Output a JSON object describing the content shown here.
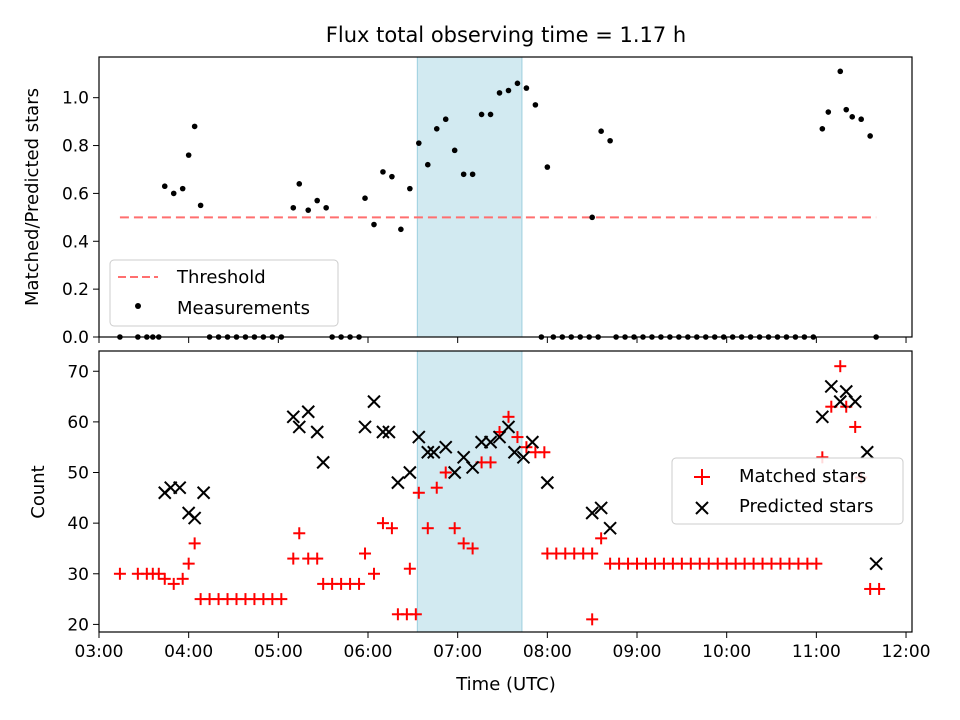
{
  "title": "Flux total observing time = 1.17 h",
  "shaded_span": {
    "start": "06:33",
    "end": "07:43",
    "color": "#add8e6"
  },
  "chart_data": [
    {
      "type": "scatter",
      "ylabel": "Matched/Predicted stars",
      "ylim": [
        0,
        1.17
      ],
      "yticks": [
        "0.0",
        "0.2",
        "0.4",
        "0.6",
        "0.8",
        "1.0"
      ],
      "threshold": {
        "value": 0.5,
        "x_start": "03:14",
        "x_end": "11:40",
        "color": "#ff6f6f",
        "style": "dashed"
      },
      "legend": {
        "position": "lower left",
        "items": [
          "Threshold",
          "Measurements"
        ]
      },
      "series": [
        {
          "name": "Measurements",
          "color": "#000000",
          "points": [
            [
              "03:14",
              0
            ],
            [
              "03:26",
              0
            ],
            [
              "03:32",
              0
            ],
            [
              "03:36",
              0
            ],
            [
              "03:40",
              0
            ],
            [
              "03:44",
              0.63
            ],
            [
              "03:50",
              0.6
            ],
            [
              "03:56",
              0.62
            ],
            [
              "04:00",
              0.76
            ],
            [
              "04:04",
              0.88
            ],
            [
              "04:08",
              0.55
            ],
            [
              "04:14",
              0
            ],
            [
              "04:20",
              0
            ],
            [
              "04:26",
              0
            ],
            [
              "04:32",
              0
            ],
            [
              "04:38",
              0
            ],
            [
              "04:44",
              0
            ],
            [
              "04:50",
              0
            ],
            [
              "04:56",
              0
            ],
            [
              "05:02",
              0
            ],
            [
              "05:10",
              0.54
            ],
            [
              "05:14",
              0.64
            ],
            [
              "05:20",
              0.53
            ],
            [
              "05:26",
              0.57
            ],
            [
              "05:32",
              0.54
            ],
            [
              "05:36",
              0
            ],
            [
              "05:42",
              0
            ],
            [
              "05:48",
              0
            ],
            [
              "05:54",
              0
            ],
            [
              "05:58",
              0.58
            ],
            [
              "06:04",
              0.47
            ],
            [
              "06:10",
              0.69
            ],
            [
              "06:16",
              0.67
            ],
            [
              "06:22",
              0.45
            ],
            [
              "06:28",
              0.62
            ],
            [
              "06:34",
              0.81
            ],
            [
              "06:40",
              0.72
            ],
            [
              "06:46",
              0.87
            ],
            [
              "06:52",
              0.91
            ],
            [
              "06:58",
              0.78
            ],
            [
              "07:04",
              0.68
            ],
            [
              "07:10",
              0.68
            ],
            [
              "07:16",
              0.93
            ],
            [
              "07:22",
              0.93
            ],
            [
              "07:28",
              1.02
            ],
            [
              "07:34",
              1.03
            ],
            [
              "07:40",
              1.06
            ],
            [
              "07:46",
              1.04
            ],
            [
              "07:52",
              0.97
            ],
            [
              "07:56",
              0
            ],
            [
              "08:00",
              0.71
            ],
            [
              "08:04",
              0
            ],
            [
              "08:10",
              0
            ],
            [
              "08:16",
              0
            ],
            [
              "08:22",
              0
            ],
            [
              "08:28",
              0
            ],
            [
              "08:34",
              0
            ],
            [
              "08:30",
              0.5
            ],
            [
              "08:36",
              0.86
            ],
            [
              "08:42",
              0.82
            ],
            [
              "08:46",
              0
            ],
            [
              "08:52",
              0
            ],
            [
              "08:58",
              0
            ],
            [
              "09:04",
              0
            ],
            [
              "09:10",
              0
            ],
            [
              "09:16",
              0
            ],
            [
              "09:22",
              0
            ],
            [
              "09:28",
              0
            ],
            [
              "09:34",
              0
            ],
            [
              "09:40",
              0
            ],
            [
              "09:46",
              0
            ],
            [
              "09:52",
              0
            ],
            [
              "09:58",
              0
            ],
            [
              "10:04",
              0
            ],
            [
              "10:10",
              0
            ],
            [
              "10:16",
              0
            ],
            [
              "10:22",
              0
            ],
            [
              "10:28",
              0
            ],
            [
              "10:34",
              0
            ],
            [
              "10:40",
              0
            ],
            [
              "10:46",
              0
            ],
            [
              "10:52",
              0
            ],
            [
              "10:58",
              0
            ],
            [
              "11:04",
              0.87
            ],
            [
              "11:08",
              0.94
            ],
            [
              "11:16",
              1.11
            ],
            [
              "11:20",
              0.95
            ],
            [
              "11:24",
              0.92
            ],
            [
              "11:30",
              0.91
            ],
            [
              "11:36",
              0.84
            ],
            [
              "11:40",
              0
            ]
          ]
        }
      ]
    },
    {
      "type": "scatter",
      "xlabel": "Time (UTC)",
      "ylabel": "Count",
      "ylim": [
        18.5,
        74
      ],
      "yticks": [
        "20",
        "30",
        "40",
        "50",
        "60",
        "70"
      ],
      "xlim": [
        "03:00",
        "12:04"
      ],
      "xticks": [
        "03:00",
        "04:00",
        "05:00",
        "06:00",
        "07:00",
        "08:00",
        "09:00",
        "10:00",
        "11:00",
        "12:00"
      ],
      "legend": {
        "position": "center right",
        "items": [
          "Matched stars",
          "Predicted stars"
        ]
      },
      "series": [
        {
          "name": "Matched stars",
          "color": "#ff0000",
          "marker": "+",
          "points": [
            [
              "03:14",
              30
            ],
            [
              "03:26",
              30
            ],
            [
              "03:32",
              30
            ],
            [
              "03:36",
              30
            ],
            [
              "03:40",
              30
            ],
            [
              "03:44",
              29
            ],
            [
              "03:50",
              28
            ],
            [
              "03:56",
              29
            ],
            [
              "04:00",
              32
            ],
            [
              "04:04",
              36
            ],
            [
              "04:08",
              25
            ],
            [
              "04:14",
              25
            ],
            [
              "04:20",
              25
            ],
            [
              "04:26",
              25
            ],
            [
              "04:32",
              25
            ],
            [
              "04:38",
              25
            ],
            [
              "04:44",
              25
            ],
            [
              "04:50",
              25
            ],
            [
              "04:56",
              25
            ],
            [
              "05:02",
              25
            ],
            [
              "05:10",
              33
            ],
            [
              "05:14",
              38
            ],
            [
              "05:20",
              33
            ],
            [
              "05:26",
              33
            ],
            [
              "05:30",
              28
            ],
            [
              "05:36",
              28
            ],
            [
              "05:42",
              28
            ],
            [
              "05:48",
              28
            ],
            [
              "05:54",
              28
            ],
            [
              "05:58",
              34
            ],
            [
              "06:04",
              30
            ],
            [
              "06:10",
              40
            ],
            [
              "06:16",
              39
            ],
            [
              "06:20",
              22
            ],
            [
              "06:26",
              22
            ],
            [
              "06:32",
              22
            ],
            [
              "06:28",
              31
            ],
            [
              "06:34",
              46
            ],
            [
              "06:40",
              39
            ],
            [
              "06:46",
              47
            ],
            [
              "06:52",
              50
            ],
            [
              "06:58",
              39
            ],
            [
              "07:04",
              36
            ],
            [
              "07:10",
              35
            ],
            [
              "07:16",
              52
            ],
            [
              "07:22",
              52
            ],
            [
              "07:28",
              58
            ],
            [
              "07:34",
              61
            ],
            [
              "07:40",
              57
            ],
            [
              "07:46",
              55
            ],
            [
              "07:52",
              54
            ],
            [
              "07:58",
              54
            ],
            [
              "08:00",
              34
            ],
            [
              "08:06",
              34
            ],
            [
              "08:12",
              34
            ],
            [
              "08:18",
              34
            ],
            [
              "08:24",
              34
            ],
            [
              "08:30",
              34
            ],
            [
              "08:30",
              21
            ],
            [
              "08:36",
              37
            ],
            [
              "08:42",
              32
            ],
            [
              "08:48",
              32
            ],
            [
              "08:54",
              32
            ],
            [
              "09:00",
              32
            ],
            [
              "09:06",
              32
            ],
            [
              "09:12",
              32
            ],
            [
              "09:18",
              32
            ],
            [
              "09:24",
              32
            ],
            [
              "09:30",
              32
            ],
            [
              "09:36",
              32
            ],
            [
              "09:42",
              32
            ],
            [
              "09:48",
              32
            ],
            [
              "09:54",
              32
            ],
            [
              "10:00",
              32
            ],
            [
              "10:06",
              32
            ],
            [
              "10:12",
              32
            ],
            [
              "10:18",
              32
            ],
            [
              "10:24",
              32
            ],
            [
              "10:30",
              32
            ],
            [
              "10:36",
              32
            ],
            [
              "10:42",
              32
            ],
            [
              "10:48",
              32
            ],
            [
              "10:54",
              32
            ],
            [
              "11:00",
              32
            ],
            [
              "11:04",
              53
            ],
            [
              "11:10",
              63
            ],
            [
              "11:16",
              71
            ],
            [
              "11:20",
              63
            ],
            [
              "11:26",
              59
            ],
            [
              "11:30",
              49
            ],
            [
              "11:36",
              27
            ],
            [
              "11:42",
              27
            ]
          ]
        },
        {
          "name": "Predicted stars",
          "color": "#000000",
          "marker": "x",
          "points": [
            [
              "03:44",
              46
            ],
            [
              "03:48",
              47
            ],
            [
              "03:54",
              47
            ],
            [
              "04:00",
              42
            ],
            [
              "04:04",
              41
            ],
            [
              "04:10",
              46
            ],
            [
              "05:10",
              61
            ],
            [
              "05:14",
              59
            ],
            [
              "05:20",
              62
            ],
            [
              "05:26",
              58
            ],
            [
              "05:30",
              52
            ],
            [
              "05:58",
              59
            ],
            [
              "06:04",
              64
            ],
            [
              "06:10",
              58
            ],
            [
              "06:14",
              58
            ],
            [
              "06:20",
              48
            ],
            [
              "06:28",
              50
            ],
            [
              "06:34",
              57
            ],
            [
              "06:40",
              54
            ],
            [
              "06:44",
              54
            ],
            [
              "06:52",
              55
            ],
            [
              "06:58",
              50
            ],
            [
              "07:04",
              53
            ],
            [
              "07:10",
              51
            ],
            [
              "07:16",
              56
            ],
            [
              "07:22",
              56
            ],
            [
              "07:28",
              57
            ],
            [
              "07:34",
              59
            ],
            [
              "07:38",
              54
            ],
            [
              "07:44",
              53
            ],
            [
              "07:50",
              56
            ],
            [
              "08:00",
              48
            ],
            [
              "08:30",
              42
            ],
            [
              "08:36",
              43
            ],
            [
              "08:42",
              39
            ],
            [
              "11:04",
              61
            ],
            [
              "11:10",
              67
            ],
            [
              "11:16",
              64
            ],
            [
              "11:20",
              66
            ],
            [
              "11:26",
              64
            ],
            [
              "11:34",
              54
            ],
            [
              "11:40",
              32
            ]
          ]
        }
      ]
    }
  ]
}
